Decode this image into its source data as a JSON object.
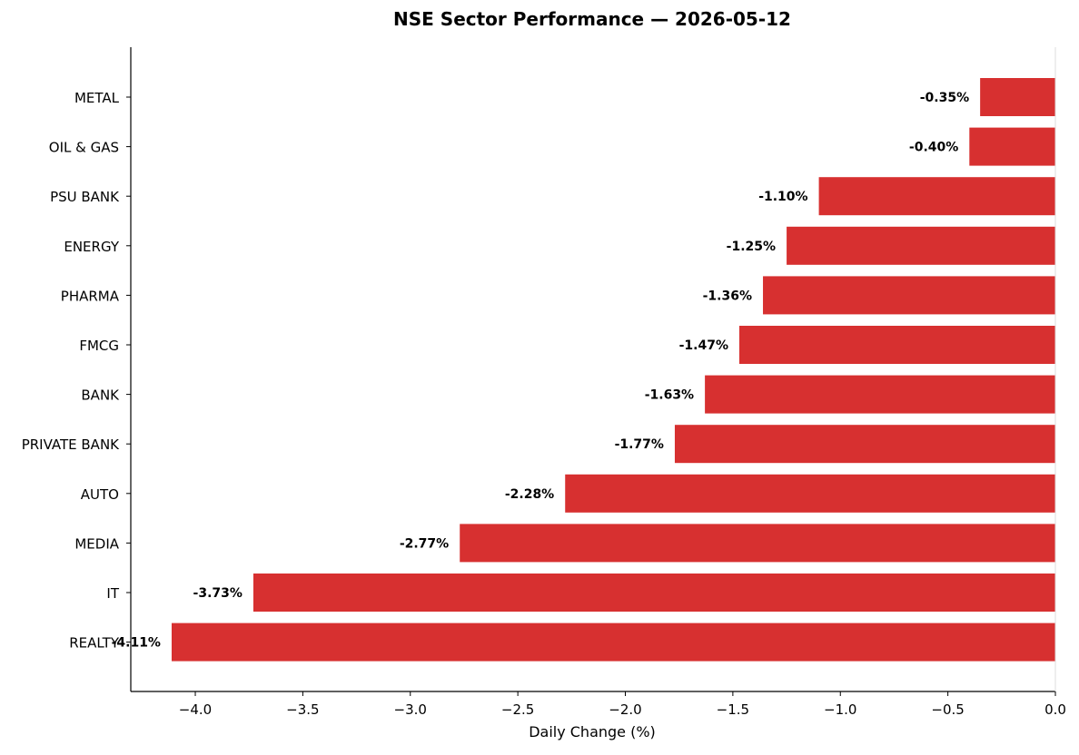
{
  "chart_data": {
    "type": "bar",
    "orientation": "horizontal",
    "title": "NSE Sector Performance — 2026-05-12",
    "xlabel": "Daily Change (%)",
    "ylabel": "",
    "categories": [
      "METAL",
      "OIL & GAS",
      "PSU BANK",
      "ENERGY",
      "PHARMA",
      "FMCG",
      "BANK",
      "PRIVATE BANK",
      "AUTO",
      "MEDIA",
      "IT",
      "REALTY"
    ],
    "values": [
      -0.35,
      -0.4,
      -1.1,
      -1.25,
      -1.36,
      -1.47,
      -1.63,
      -1.77,
      -2.28,
      -2.77,
      -3.73,
      -4.11
    ],
    "value_labels": [
      "-0.35%",
      "-0.40%",
      "-1.10%",
      "-1.25%",
      "-1.36%",
      "-1.47%",
      "-1.63%",
      "-1.77%",
      "-2.28%",
      "-2.77%",
      "-3.73%",
      "-4.11%"
    ],
    "xlim": [
      -4.3,
      0.0
    ],
    "xticks": [
      -4.0,
      -3.5,
      -3.0,
      -2.5,
      -2.0,
      -1.5,
      -1.0,
      -0.5,
      0.0
    ],
    "xtick_labels": [
      "−4.0",
      "−3.5",
      "−3.0",
      "−2.5",
      "−2.0",
      "−1.5",
      "−1.0",
      "−0.5",
      "0.0"
    ],
    "grid": false,
    "legend": "none",
    "bar_color": "#d73030"
  }
}
